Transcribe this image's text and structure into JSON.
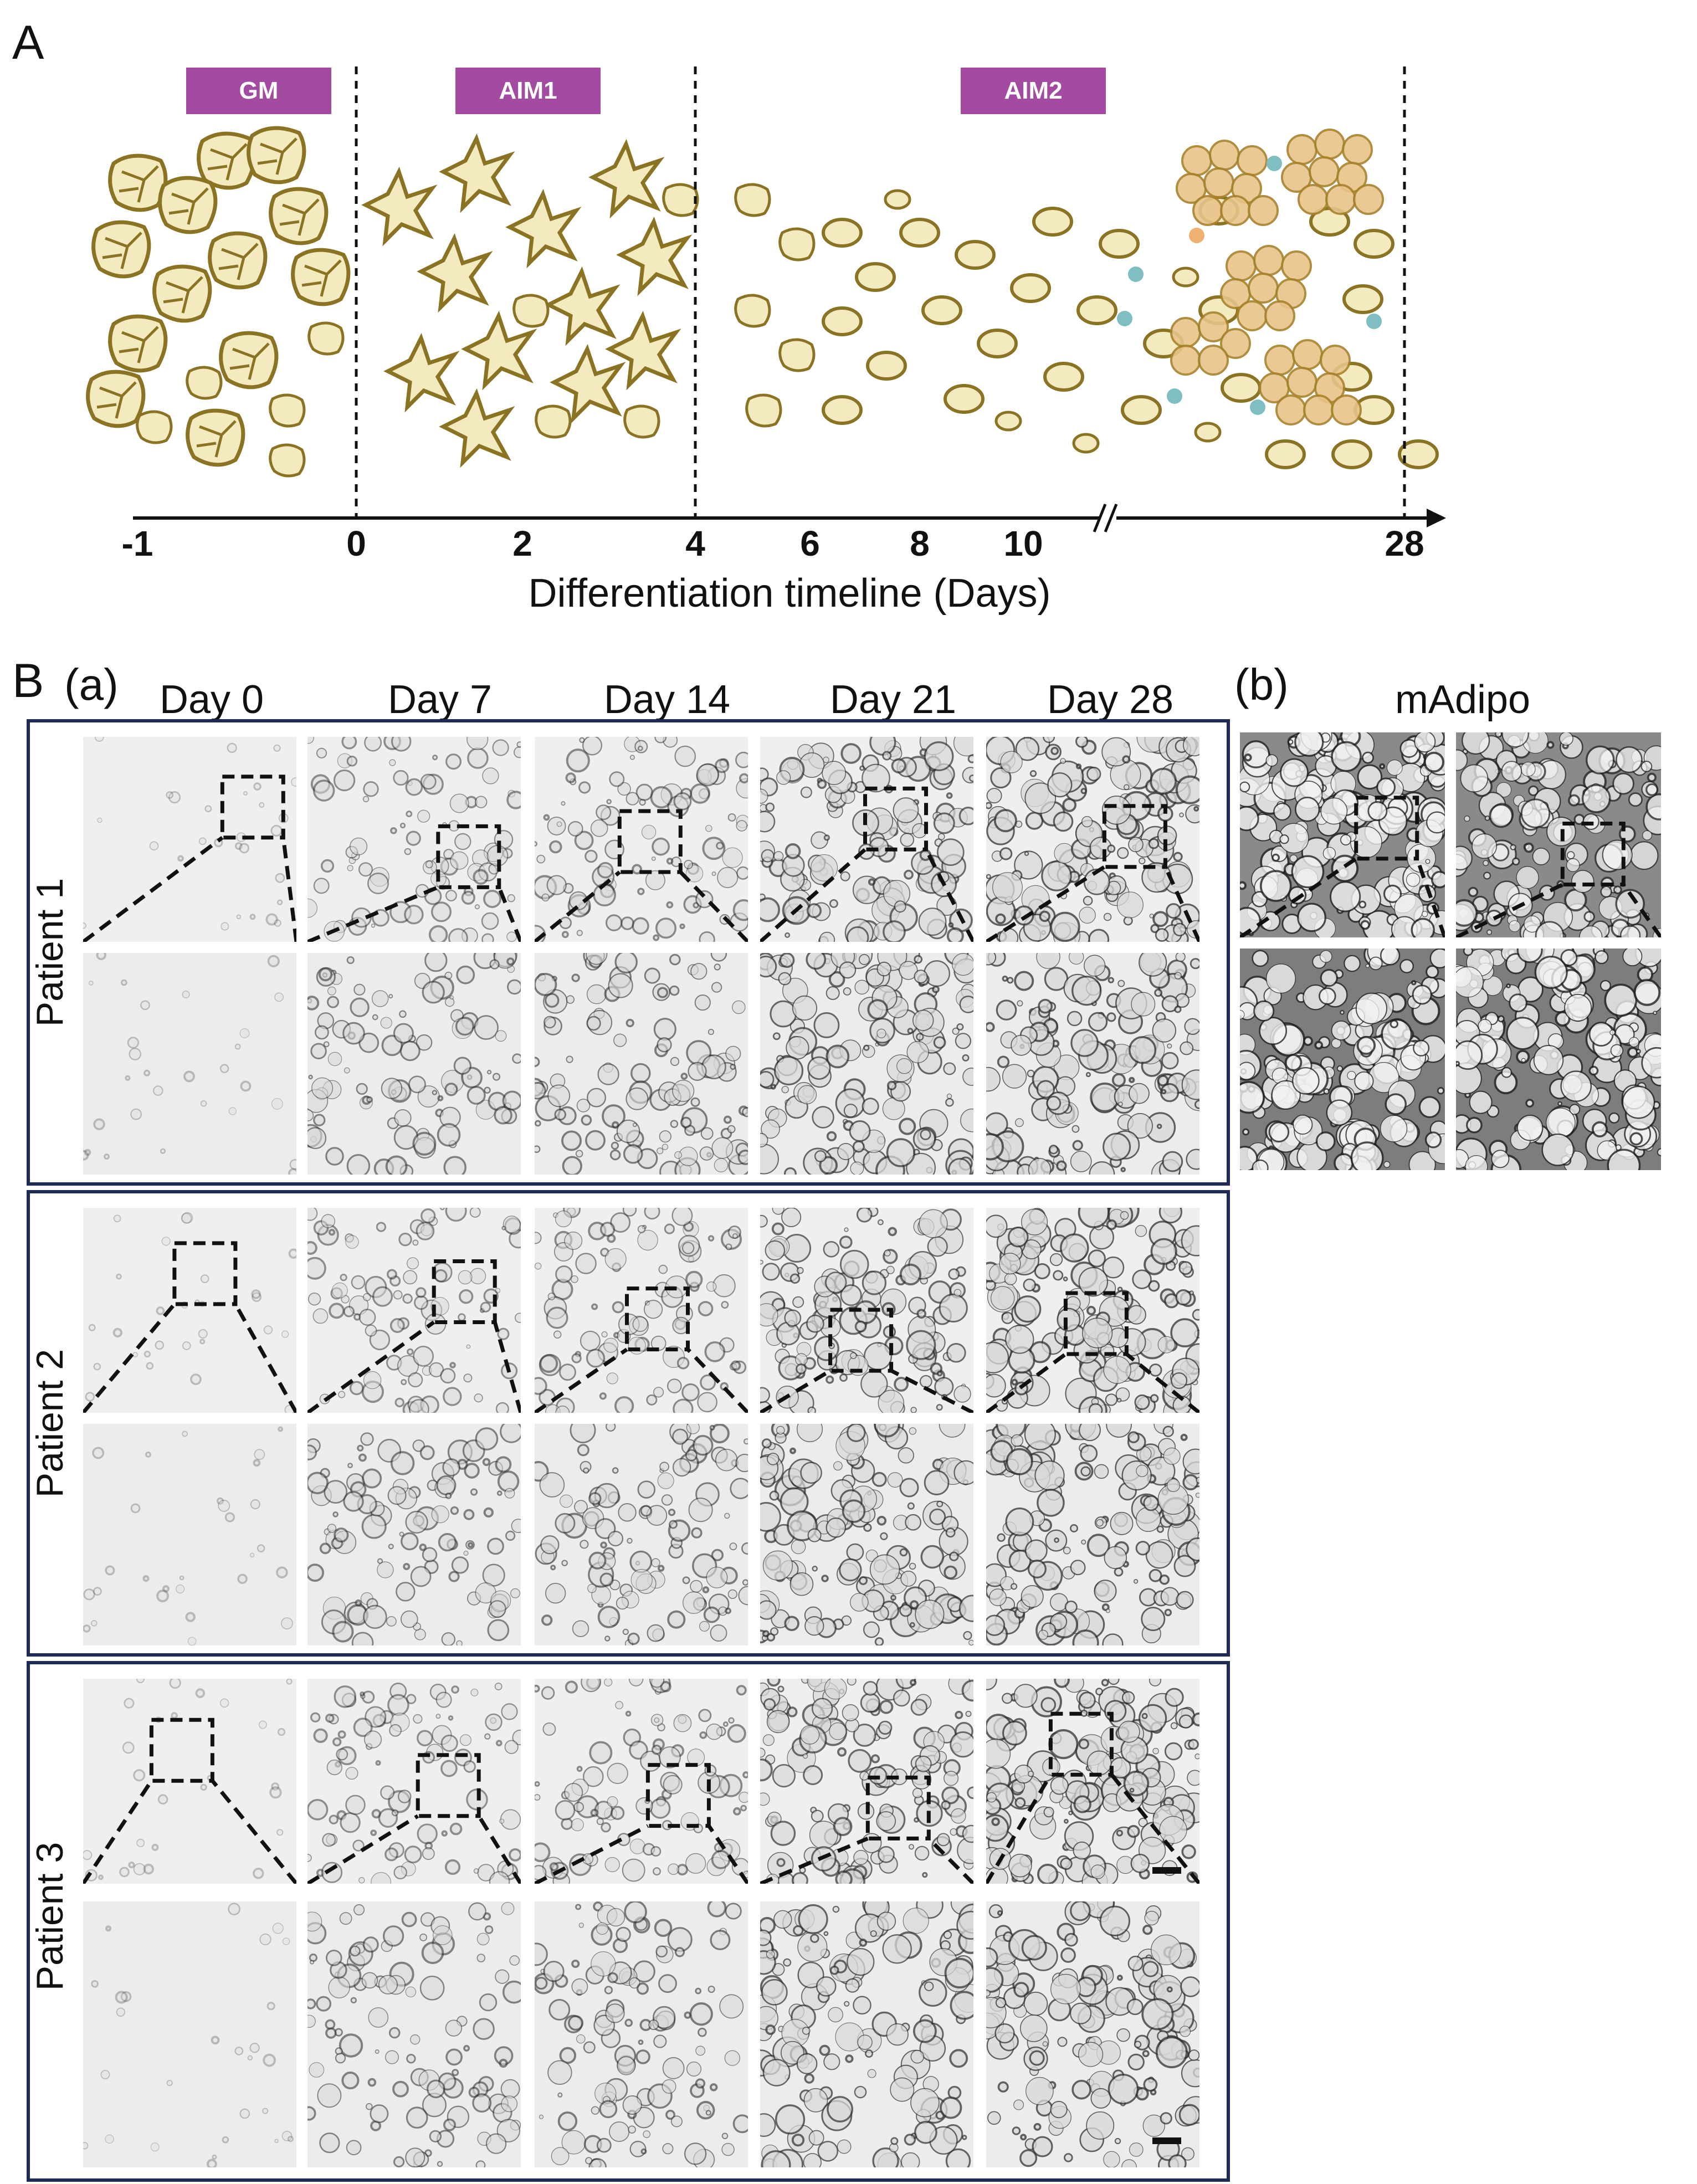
{
  "panelA": {
    "letter": "A",
    "phases": [
      "GM",
      "AIM1",
      "AIM2"
    ],
    "ticks": [
      "-1",
      "0",
      "2",
      "4",
      "6",
      "8",
      "10",
      "28"
    ],
    "axis_break": "//",
    "axis_title": "Differentiation timeline (Days)",
    "colors": {
      "phase_badge": "#a24ba0",
      "cell_fill": "#f4eac0",
      "cell_stroke": "#8a7322",
      "lipid": "#e8c48a",
      "blue_dot": "#7fbfc2"
    }
  },
  "panelB": {
    "letter": "B",
    "sub_a": "(a)",
    "sub_b": "(b)",
    "days": [
      "Day 0",
      "Day 7",
      "Day 14",
      "Day 21",
      "Day 28"
    ],
    "patients": [
      "Patient 1",
      "Patient 2",
      "Patient 3"
    ],
    "madipo_title": "mAdipo",
    "colors": {
      "box_border": "#1f2b54"
    }
  }
}
